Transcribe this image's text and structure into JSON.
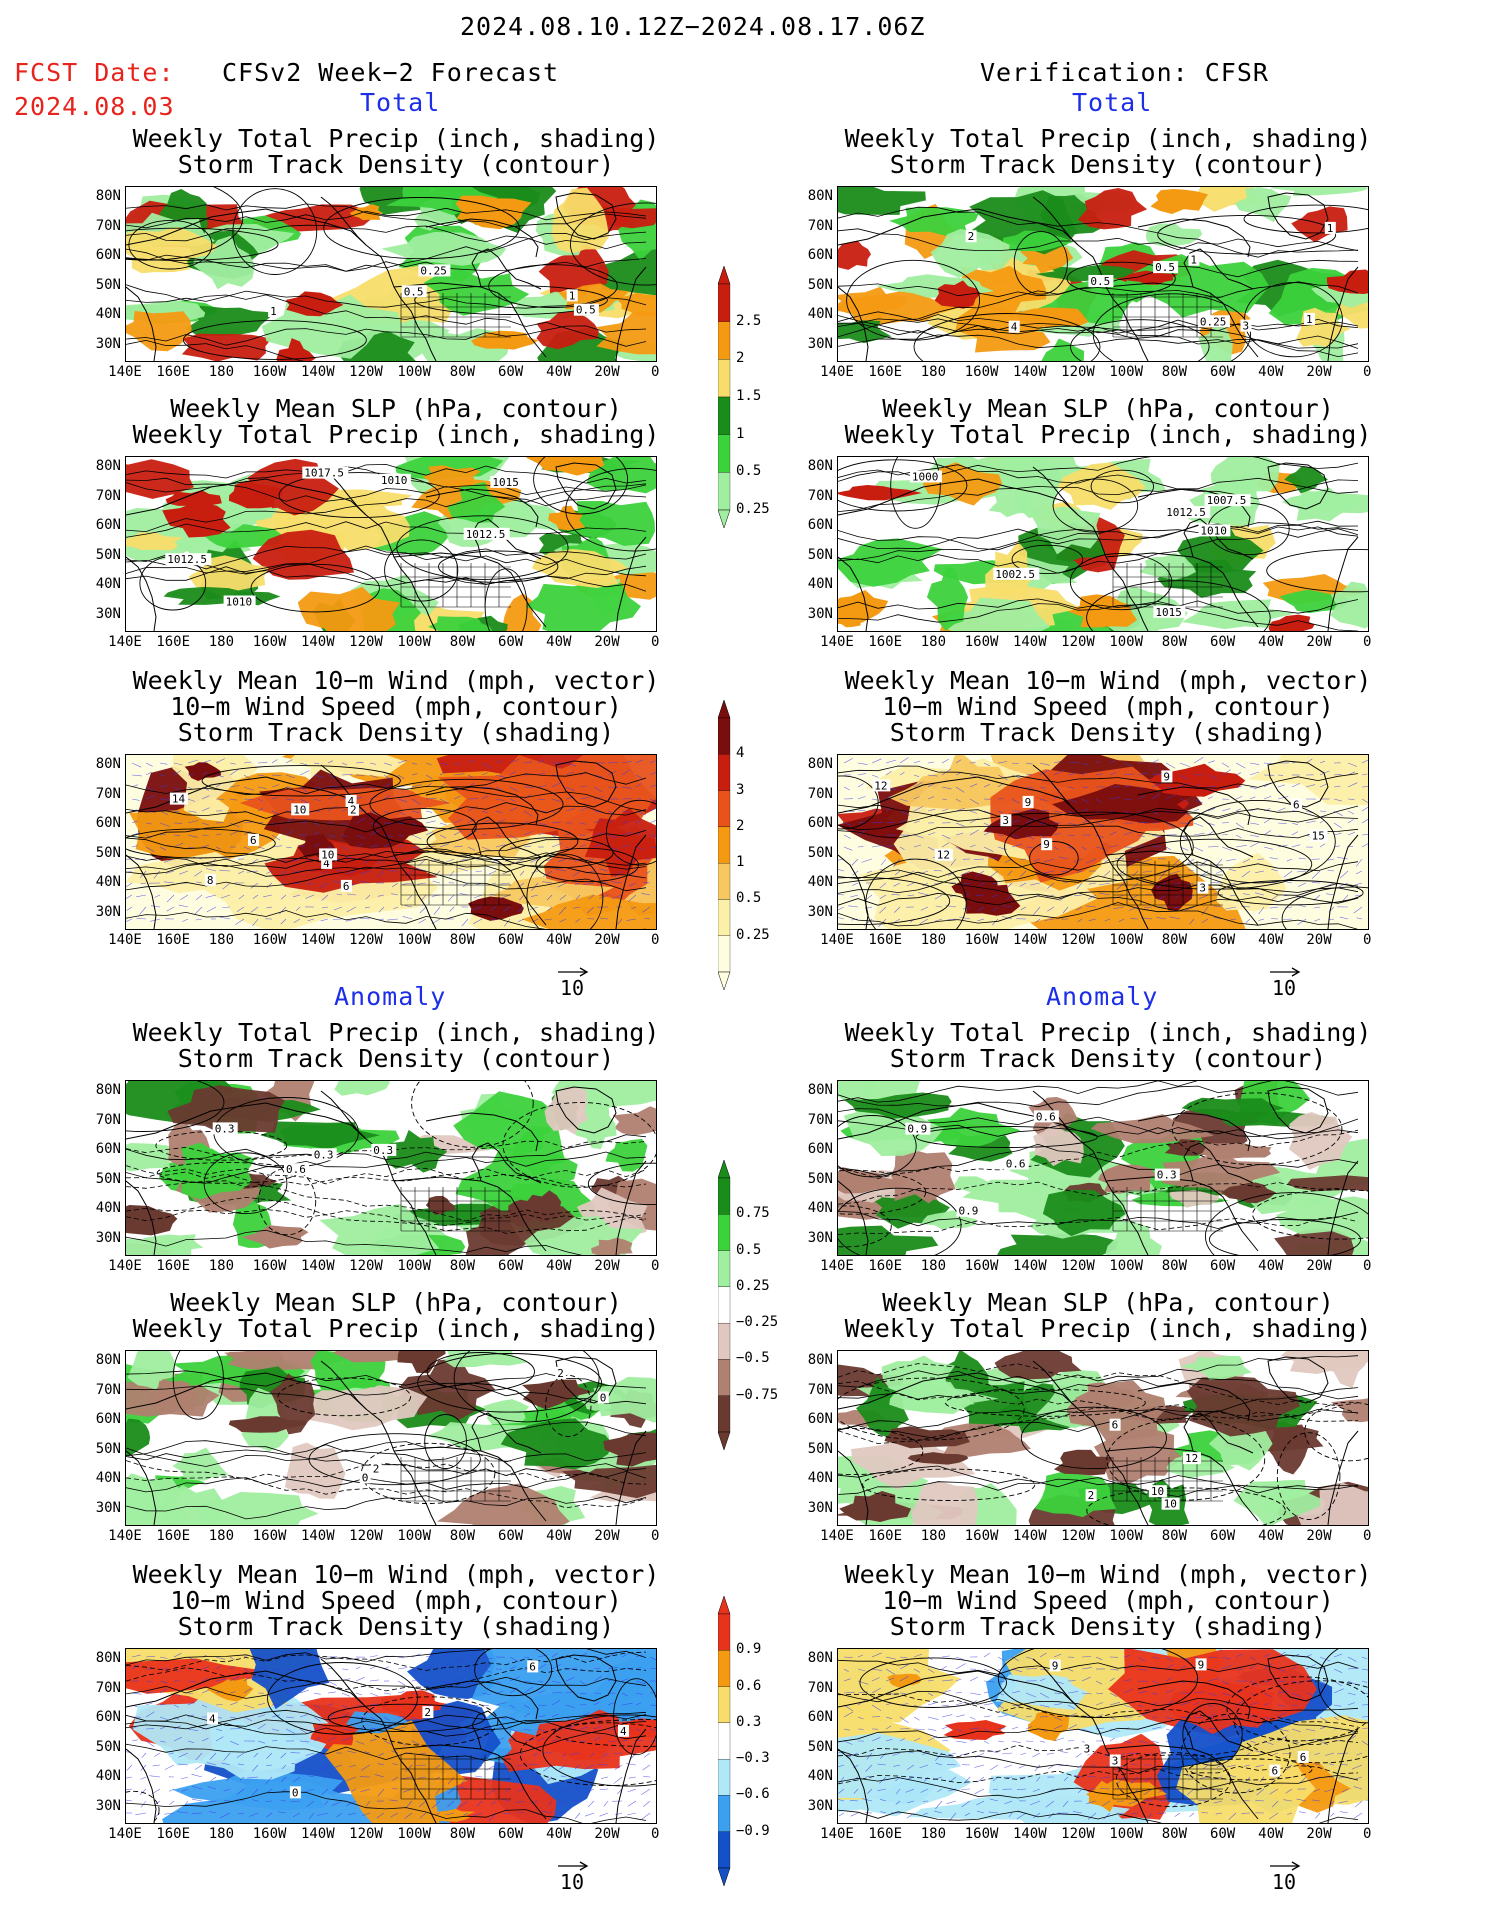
{
  "header": {
    "period": "2024.08.10.12Z−2024.08.17.06Z",
    "fcst_label": "FCST Date:",
    "fcst_date": "2024.08.03",
    "left_title": "CFSv2 Week−2 Forecast",
    "right_title": "Verification: CFSR"
  },
  "sections": {
    "total": "Total",
    "anomaly": "Anomaly"
  },
  "panel_titles": {
    "precip_storm": "Weekly Total Precip (inch, shading)\nStorm Track Density (contour)",
    "slp_precip": "Weekly Mean SLP (hPa, contour)\nWeekly Total Precip (inch, shading)",
    "wind": "Weekly Mean 10−m Wind (mph, vector)\n10−m Wind Speed (mph, contour)\nStorm Track Density (shading)"
  },
  "axes": {
    "lat_labels": [
      "80N",
      "70N",
      "60N",
      "50N",
      "40N",
      "30N"
    ],
    "lon_labels": [
      "140E",
      "160E",
      "180",
      "160W",
      "140W",
      "120W",
      "100W",
      "80W",
      "60W",
      "40W",
      "20W",
      "0"
    ]
  },
  "vector_reference": "10",
  "colorbars": {
    "precip_total": {
      "labels": [
        "2.5",
        "2",
        "1.5",
        "1",
        "0.5",
        "0.25"
      ],
      "colors": [
        "#c81e10",
        "#f49a12",
        "#f8dd6a",
        "#1a8c1a",
        "#3cd23c",
        "#a0eea0"
      ]
    },
    "storm_total": {
      "labels": [
        "4",
        "3",
        "2",
        "1",
        "0.5",
        "0.25"
      ],
      "colors": [
        "#7a0d0d",
        "#c81e10",
        "#e8531c",
        "#f49a12",
        "#f8c860",
        "#fcefa8",
        "#fffde0"
      ]
    },
    "precip_anom": {
      "labels": [
        "0.75",
        "0.5",
        "0.25",
        "−0.25",
        "−0.5",
        "−0.75"
      ],
      "colors": [
        "#1a8c1a",
        "#3cd23c",
        "#a0eea0",
        "#ffffff",
        "#e0c8c0",
        "#b08070",
        "#6a3a30"
      ]
    },
    "storm_anom": {
      "labels": [
        "0.9",
        "0.6",
        "0.3",
        "−0.3",
        "−0.6",
        "−0.9"
      ],
      "colors": [
        "#e8331c",
        "#f49a12",
        "#f8dd6a",
        "#ffffff",
        "#b0e8f8",
        "#3ca0f0",
        "#1450c8"
      ]
    }
  },
  "panels": [
    {
      "id": "fc-total-precip",
      "type": "precip",
      "labels": [
        "1",
        "0.5",
        "0.5",
        "0.25",
        "1"
      ]
    },
    {
      "id": "vf-total-precip",
      "type": "precip",
      "labels": [
        "0.25",
        "1",
        "1",
        "0.5",
        "3",
        "1",
        "2",
        "4",
        "0.5"
      ]
    },
    {
      "id": "fc-total-slp",
      "type": "precip",
      "labels": [
        "1010",
        "1010",
        "1017.5",
        "1012.5",
        "1015",
        "1012.5"
      ]
    },
    {
      "id": "vf-total-slp",
      "type": "precip",
      "labels": [
        "1015",
        "1002.5",
        "1007.5",
        "1010",
        "1012.5",
        "1000"
      ]
    },
    {
      "id": "fc-total-wind",
      "type": "storm",
      "labels": [
        "4",
        "2",
        "4",
        "6",
        "8",
        "10",
        "10",
        "14",
        "6"
      ]
    },
    {
      "id": "vf-total-wind",
      "type": "storm",
      "labels": [
        "9",
        "3",
        "6",
        "12",
        "9",
        "9",
        "12",
        "15",
        "3"
      ]
    },
    {
      "id": "fc-anom-precip",
      "type": "panom",
      "labels": [
        "0.3",
        "0.6",
        "0.3",
        "0.3"
      ]
    },
    {
      "id": "vf-anom-precip",
      "type": "panom",
      "labels": [
        "0.9",
        "0.6",
        "0.6",
        "0.9",
        "0.3"
      ]
    },
    {
      "id": "fc-anom-slp",
      "type": "panom",
      "labels": [
        "2",
        "0",
        "2",
        "0"
      ]
    },
    {
      "id": "vf-anom-slp",
      "type": "panom",
      "labels": [
        "10",
        "6",
        "10",
        "12",
        "2"
      ]
    },
    {
      "id": "fc-anom-wind",
      "type": "sanom",
      "labels": [
        "4",
        "0",
        "4",
        "6",
        "2"
      ]
    },
    {
      "id": "vf-anom-wind",
      "type": "sanom",
      "labels": [
        "9",
        "6",
        "3",
        "3",
        "6",
        "9"
      ]
    }
  ]
}
